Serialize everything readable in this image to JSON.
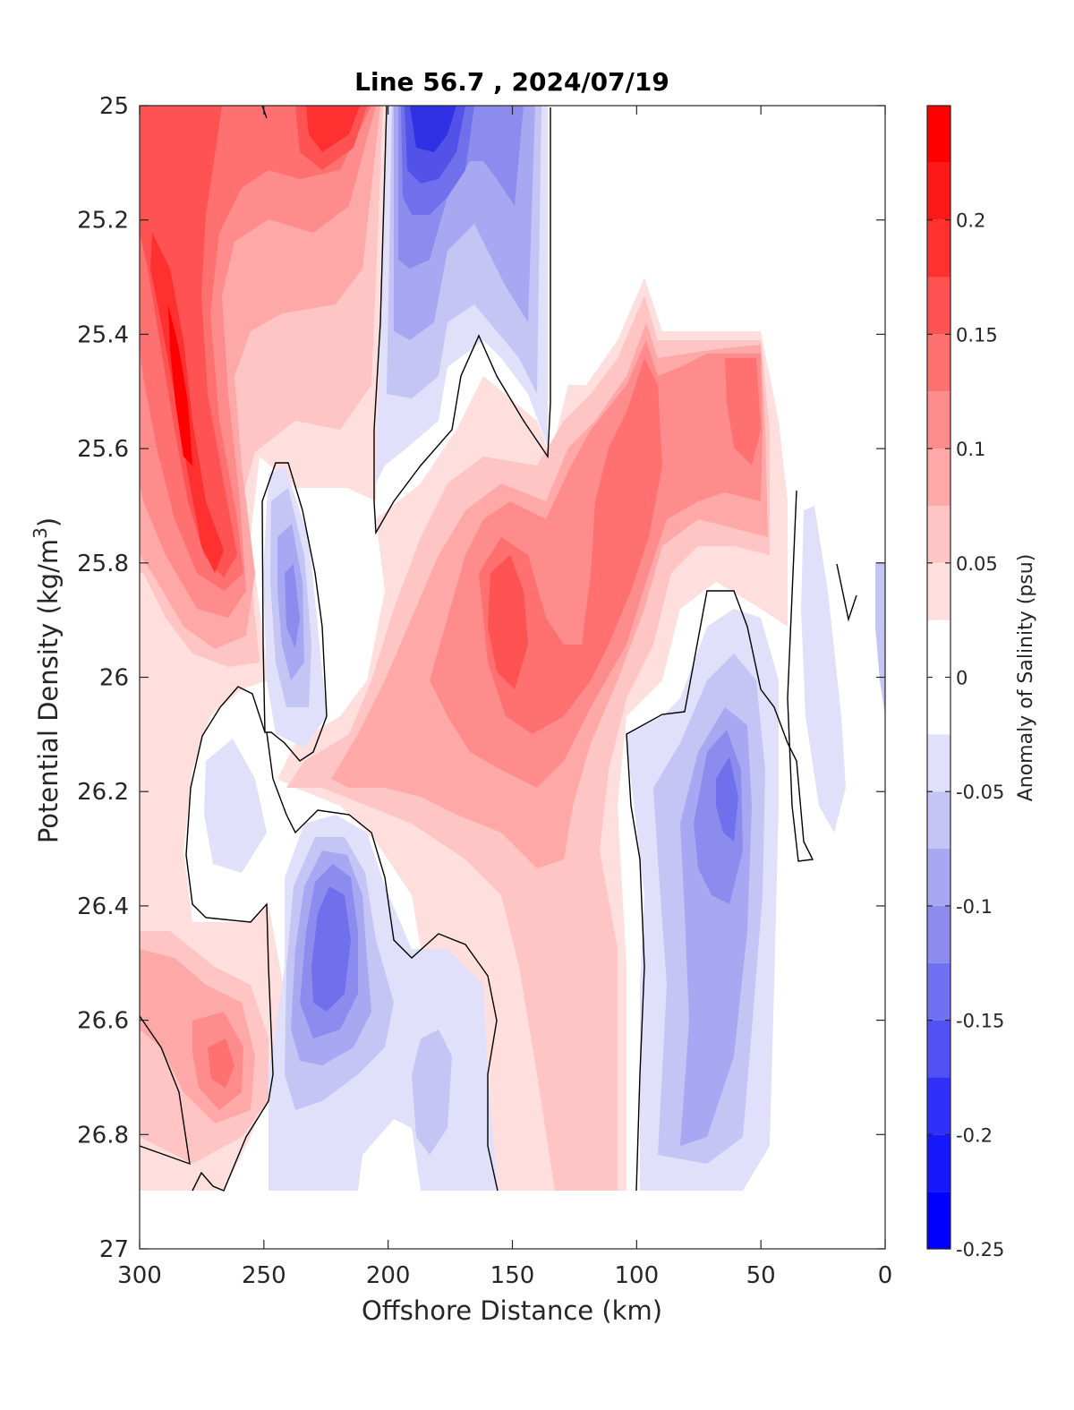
{
  "chart_data": {
    "type": "heatmap",
    "subtype": "filled-contour",
    "title": "Line 56.7 , 2024/07/19",
    "xlabel": "Offshore Distance (km)",
    "ylabel": "Potential Density (kg/m³)",
    "ylabel_parts": {
      "main": "Potential Density (kg/m",
      "sup": "3",
      "end": ")"
    },
    "colorbar_label": "Anomaly of Salinity (psu)",
    "xlim": [
      300,
      0
    ],
    "ylim": [
      25,
      27
    ],
    "y_reversed": true,
    "x_reversed": true,
    "x_ticks": [
      300,
      250,
      200,
      150,
      100,
      50,
      0
    ],
    "y_ticks": [
      25,
      25.2,
      25.4,
      25.6,
      25.8,
      26,
      26.2,
      26.4,
      26.6,
      26.8,
      27
    ],
    "y_tick_labels": [
      "25",
      "25.2",
      "25.4",
      "25.6",
      "25.8",
      "26",
      "26.2",
      "26.4",
      "26.6",
      "26.8",
      "27"
    ],
    "colorbar": {
      "range": [
        -0.25,
        0.25
      ],
      "levels": [
        -0.25,
        -0.225,
        -0.2,
        -0.175,
        -0.15,
        -0.125,
        -0.1,
        -0.075,
        -0.05,
        -0.025,
        0,
        0.025,
        0.05,
        0.075,
        0.1,
        0.125,
        0.15,
        0.175,
        0.2,
        0.225,
        0.25
      ],
      "tick_values": [
        -0.25,
        -0.2,
        -0.15,
        -0.1,
        -0.05,
        0,
        0.05,
        0.1,
        0.15,
        0.2
      ],
      "tick_labels": [
        "-0.25",
        "-0.2",
        "-0.15",
        "-0.1",
        "-0.05",
        "0",
        "0.05",
        "0.1",
        "0.15",
        "0.2"
      ],
      "colormap": "blue-white-red"
    },
    "features": [
      {
        "name": "high salinity core",
        "x": 280,
        "y": 25.45,
        "value": 0.24
      },
      {
        "name": "high salinity core",
        "x": 268,
        "y": 25.8,
        "value": 0.2
      },
      {
        "name": "high salinity core",
        "x": 220,
        "y": 25.1,
        "value": 0.2
      },
      {
        "name": "low salinity core",
        "x": 182,
        "y": 25.1,
        "value": -0.21
      },
      {
        "name": "low salinity core",
        "x": 240,
        "y": 25.9,
        "value": -0.12
      },
      {
        "name": "high salinity core",
        "x": 152,
        "y": 25.92,
        "value": 0.16
      },
      {
        "name": "high salinity core",
        "x": 112,
        "y": 25.8,
        "value": 0.16
      },
      {
        "name": "high salinity core",
        "x": 64,
        "y": 25.5,
        "value": 0.13
      },
      {
        "name": "low salinity core",
        "x": 64,
        "y": 26.2,
        "value": -0.14
      },
      {
        "name": "low salinity core",
        "x": 220,
        "y": 26.5,
        "value": -0.17
      },
      {
        "name": "high salinity core",
        "x": 268,
        "y": 26.7,
        "value": 0.12
      }
    ]
  },
  "colors": {
    "axis": "#262626",
    "contour_zero": "#000000",
    "positive": "#ff0000",
    "negative": "#0000ff"
  }
}
